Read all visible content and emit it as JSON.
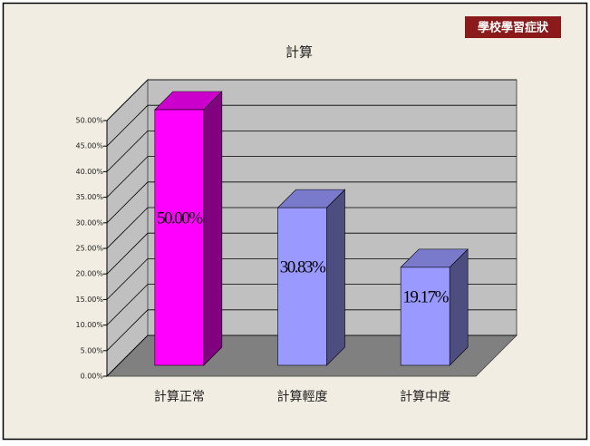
{
  "badge": "學校學習症狀",
  "chart_data": {
    "type": "bar3d",
    "title": "計算",
    "categories": [
      "計算正常",
      "計算輕度",
      "計算中度"
    ],
    "values": [
      50.0,
      30.83,
      19.17
    ],
    "value_labels": [
      "50.00%",
      "30.83%",
      "19.17%"
    ],
    "colors": [
      "#ff00ff",
      "#9999ff",
      "#9999ff"
    ],
    "ylim": [
      0,
      50
    ],
    "yticks": [
      {
        "value": 0,
        "label": "0.00%"
      },
      {
        "value": 5,
        "label": "5.00%"
      },
      {
        "value": 10,
        "label": "10.00%"
      },
      {
        "value": 15,
        "label": "15.00%"
      },
      {
        "value": 20,
        "label": "20.00%"
      },
      {
        "value": 25,
        "label": "25.00%"
      },
      {
        "value": 30,
        "label": "30.00%"
      },
      {
        "value": 35,
        "label": "35.00%"
      },
      {
        "value": 40,
        "label": "40.00%"
      },
      {
        "value": 45,
        "label": "45.00%"
      },
      {
        "value": 50,
        "label": "50.00%"
      }
    ],
    "grid": true
  }
}
